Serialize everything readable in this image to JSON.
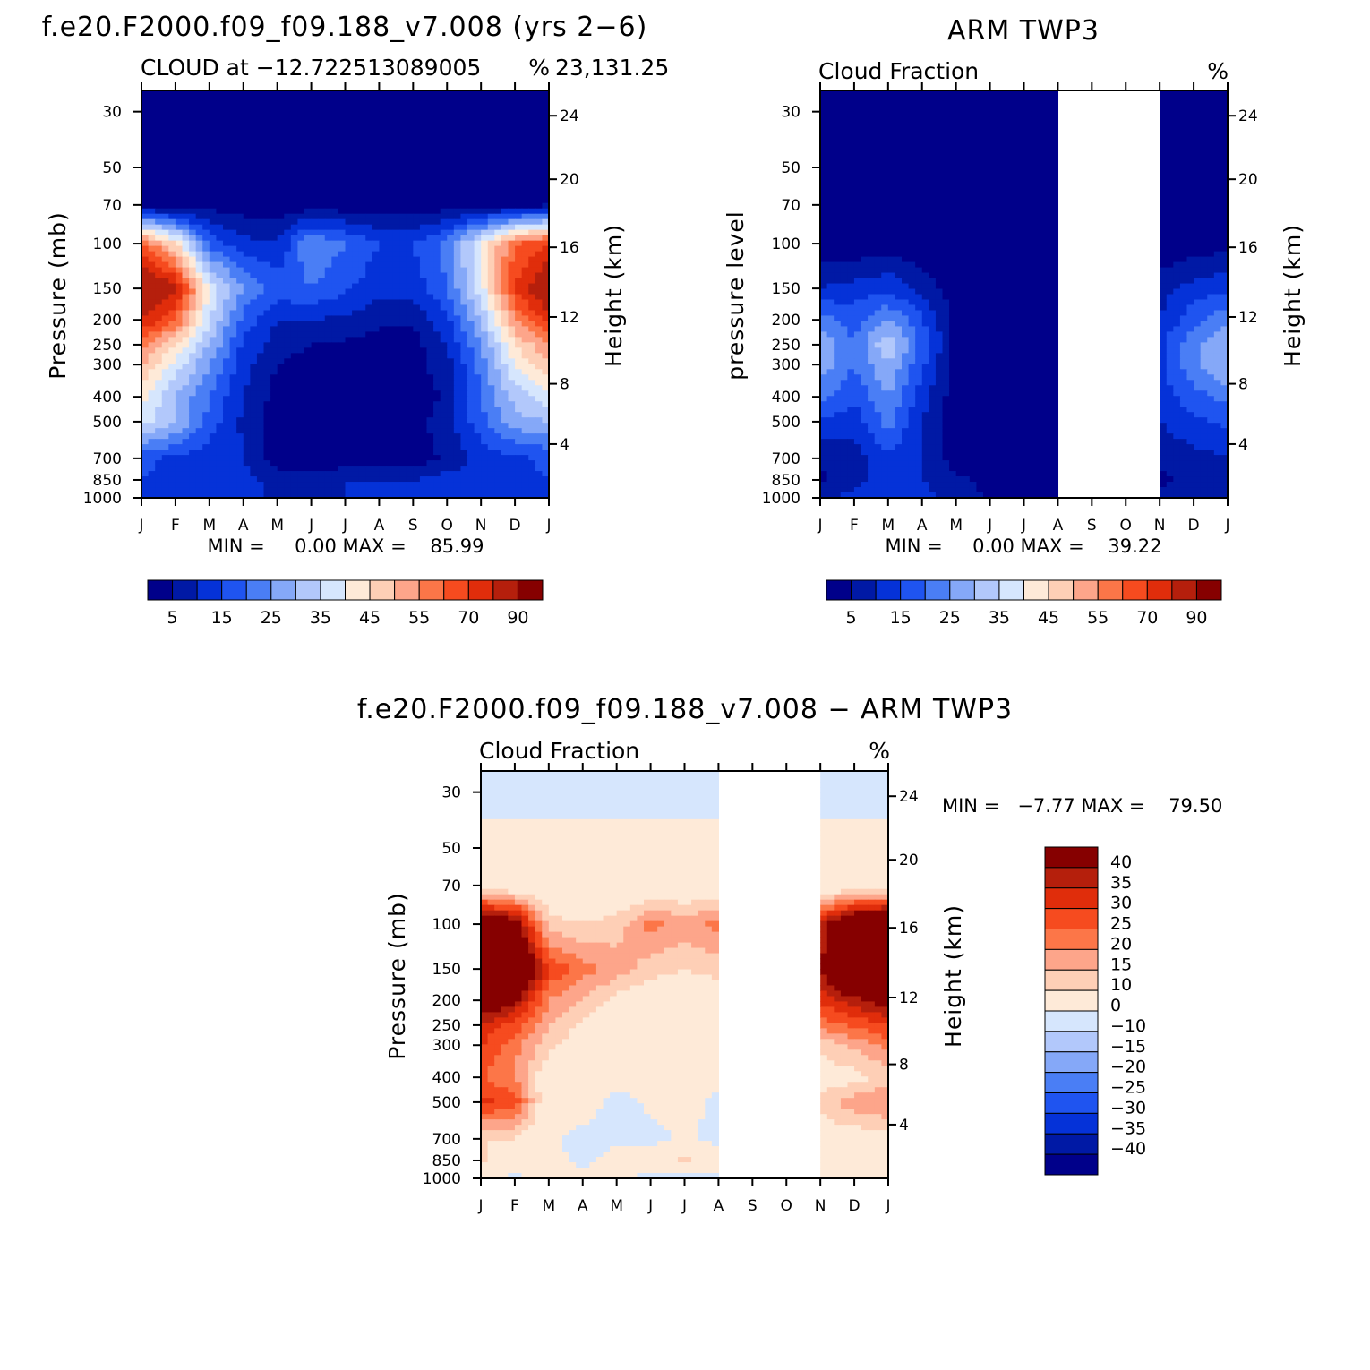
{
  "chart_data": [
    {
      "type": "heatmap",
      "title": "f.e20.F2000.f09_f09.188_v7.008 (yrs 2−6)",
      "subtitle_left": "CLOUD at −12.722513089005",
      "subtitle_right": "23,131.25",
      "units": "%",
      "ylabel": "Pressure (mb)",
      "ylabel_right": "Height (km)",
      "x_ticks": [
        "J",
        "F",
        "M",
        "A",
        "M",
        "J",
        "J",
        "A",
        "S",
        "O",
        "N",
        "D",
        "J"
      ],
      "y_ticks": [
        "30",
        "50",
        "70",
        "100",
        "150",
        "200",
        "250",
        "300",
        "400",
        "500",
        "700",
        "850",
        "1000"
      ],
      "y_ticks_right": [
        "24",
        "20",
        "16",
        "12",
        "8",
        "4"
      ],
      "min_max_text": "MIN =     0.00 MAX =    85.99",
      "min": 0.0,
      "max": 85.99,
      "colorbar_labels": [
        "5",
        "15",
        "25",
        "35",
        "45",
        "55",
        "70",
        "90"
      ],
      "colorbar_colors": [
        "#00008a",
        "#0019a5",
        "#0532d8",
        "#1f54f0",
        "#4a7ef5",
        "#85a8f8",
        "#b2c8fb",
        "#d6e6fd",
        "#feead8",
        "#fecfb6",
        "#fda58a",
        "#fc7648",
        "#f64b1f",
        "#e02d0b",
        "#b51f0c",
        "#860000"
      ],
      "field": {
        "months": [
          "J",
          "F",
          "M",
          "A",
          "M",
          "J",
          "J",
          "A",
          "S",
          "O",
          "N",
          "D",
          "J"
        ],
        "levels_mb": [
          30,
          50,
          70,
          100,
          150,
          200,
          250,
          300,
          400,
          500,
          700,
          850,
          1000
        ],
        "values": [
          [
            1,
            1,
            1,
            1,
            1,
            1,
            1,
            1,
            1,
            1,
            1,
            1,
            1
          ],
          [
            1,
            1,
            1,
            1,
            1,
            1,
            1,
            1,
            1,
            1,
            1,
            1,
            1
          ],
          [
            2,
            1,
            3,
            2,
            2,
            2,
            2,
            2,
            2,
            2,
            2,
            2,
            4
          ],
          [
            60,
            45,
            18,
            12,
            10,
            25,
            20,
            15,
            15,
            22,
            40,
            60,
            65
          ],
          [
            80,
            72,
            40,
            25,
            18,
            20,
            16,
            12,
            12,
            20,
            38,
            65,
            78
          ],
          [
            70,
            60,
            35,
            18,
            10,
            10,
            9,
            6,
            6,
            14,
            30,
            55,
            68
          ],
          [
            58,
            45,
            30,
            14,
            8,
            5,
            4,
            3,
            3,
            10,
            25,
            45,
            55
          ],
          [
            50,
            38,
            25,
            12,
            5,
            2,
            2,
            2,
            3,
            8,
            22,
            40,
            50
          ],
          [
            42,
            30,
            20,
            10,
            3,
            1,
            1,
            1,
            1,
            6,
            20,
            32,
            38
          ],
          [
            38,
            30,
            18,
            9,
            2,
            1,
            1,
            1,
            3,
            8,
            18,
            28,
            30
          ],
          [
            16,
            14,
            12,
            10,
            2,
            1,
            1,
            2,
            2,
            6,
            12,
            14,
            16
          ],
          [
            15,
            14,
            13,
            12,
            8,
            8,
            10,
            10,
            10,
            12,
            12,
            14,
            15
          ],
          [
            10,
            10,
            10,
            10,
            10,
            10,
            10,
            10,
            10,
            10,
            10,
            10,
            10
          ]
        ]
      }
    },
    {
      "type": "heatmap",
      "title": "ARM TWP3",
      "subtitle_left": "Cloud Fraction",
      "units": "%",
      "ylabel": "pressure level",
      "ylabel_right": "Height (km)",
      "x_ticks": [
        "J",
        "F",
        "M",
        "A",
        "M",
        "J",
        "J",
        "A",
        "S",
        "O",
        "N",
        "D",
        "J"
      ],
      "y_ticks": [
        "30",
        "50",
        "70",
        "100",
        "150",
        "200",
        "250",
        "300",
        "400",
        "500",
        "700",
        "850",
        "1000"
      ],
      "y_ticks_right": [
        "24",
        "20",
        "16",
        "12",
        "8",
        "4"
      ],
      "min_max_text": "MIN =     0.00 MAX =    39.22",
      "min": 0.0,
      "max": 39.22,
      "missing_months": [
        "S",
        "O"
      ],
      "colorbar_labels": [
        "5",
        "15",
        "25",
        "35",
        "45",
        "55",
        "70",
        "90"
      ],
      "colorbar_colors": [
        "#00008a",
        "#0019a5",
        "#0532d8",
        "#1f54f0",
        "#4a7ef5",
        "#85a8f8",
        "#b2c8fb",
        "#d6e6fd",
        "#feead8",
        "#fecfb6",
        "#fda58a",
        "#fc7648",
        "#f64b1f",
        "#e02d0b",
        "#b51f0c",
        "#860000"
      ],
      "field": {
        "months": [
          "J",
          "F",
          "M",
          "A",
          "M",
          "J",
          "J",
          "A",
          "S",
          "O",
          "N",
          "D",
          "J"
        ],
        "levels_mb": [
          30,
          50,
          70,
          100,
          150,
          200,
          250,
          300,
          400,
          500,
          700,
          850,
          1000
        ],
        "values": [
          [
            0,
            0,
            0,
            0,
            0,
            0,
            0,
            0,
            null,
            null,
            0,
            0,
            0
          ],
          [
            0,
            0,
            0,
            0,
            0,
            0,
            0,
            0,
            null,
            null,
            0,
            0,
            0
          ],
          [
            0,
            0,
            0,
            0,
            0,
            0,
            0,
            0,
            null,
            null,
            0,
            0,
            0
          ],
          [
            1,
            1,
            2,
            1,
            0,
            0,
            0,
            0,
            null,
            null,
            0,
            2,
            3
          ],
          [
            10,
            12,
            14,
            8,
            2,
            0,
            0,
            0,
            null,
            null,
            8,
            12,
            14
          ],
          [
            22,
            18,
            25,
            16,
            3,
            0,
            0,
            0,
            null,
            null,
            10,
            18,
            24
          ],
          [
            30,
            20,
            35,
            18,
            3,
            0,
            0,
            0,
            null,
            null,
            14,
            24,
            30
          ],
          [
            28,
            20,
            30,
            16,
            3,
            0,
            0,
            0,
            null,
            null,
            14,
            24,
            30
          ],
          [
            22,
            16,
            25,
            12,
            2,
            0,
            0,
            0,
            null,
            null,
            12,
            18,
            22
          ],
          [
            14,
            12,
            22,
            10,
            2,
            0,
            0,
            0,
            null,
            null,
            10,
            14,
            16
          ],
          [
            6,
            8,
            14,
            10,
            2,
            1,
            0,
            0,
            null,
            null,
            6,
            8,
            10
          ],
          [
            4,
            8,
            12,
            10,
            6,
            4,
            0,
            0,
            null,
            null,
            4,
            6,
            8
          ],
          [
            8,
            12,
            14,
            12,
            8,
            4,
            0,
            0,
            null,
            null,
            6,
            8,
            10
          ]
        ]
      }
    },
    {
      "type": "heatmap",
      "title": "f.e20.F2000.f09_f09.188_v7.008 − ARM TWP3",
      "subtitle_left": "Cloud Fraction",
      "units": "%",
      "ylabel": "Pressure (mb)",
      "ylabel_right": "Height (km)",
      "x_ticks": [
        "J",
        "F",
        "M",
        "A",
        "M",
        "J",
        "J",
        "A",
        "S",
        "O",
        "N",
        "D",
        "J"
      ],
      "y_ticks": [
        "30",
        "50",
        "70",
        "100",
        "150",
        "200",
        "250",
        "300",
        "400",
        "500",
        "700",
        "850",
        "1000"
      ],
      "y_ticks_right": [
        "24",
        "20",
        "16",
        "12",
        "8",
        "4"
      ],
      "min_max_text": "MIN =   −7.77 MAX =    79.50",
      "min": -7.77,
      "max": 79.5,
      "missing_months": [
        "S",
        "O"
      ],
      "colorbar_labels": [
        "40",
        "35",
        "30",
        "25",
        "20",
        "15",
        "10",
        "0",
        "−10",
        "−15",
        "−20",
        "−25",
        "−30",
        "−35",
        "−40"
      ],
      "colorbar_colors": [
        "#860000",
        "#b51f0c",
        "#e02d0b",
        "#f64b1f",
        "#fc7648",
        "#fda58a",
        "#fecfb6",
        "#feead8",
        "#d6e6fd",
        "#b2c8fb",
        "#85a8f8",
        "#4a7ef5",
        "#1f54f0",
        "#0532d8",
        "#0019a5",
        "#00008a"
      ],
      "field": {
        "months": [
          "J",
          "F",
          "M",
          "A",
          "M",
          "J",
          "J",
          "A",
          "S",
          "O",
          "N",
          "D",
          "J"
        ],
        "levels_mb": [
          30,
          50,
          70,
          100,
          150,
          200,
          250,
          300,
          400,
          500,
          700,
          850,
          1000
        ],
        "values": [
          [
            -2,
            -2,
            -2,
            -2,
            -2,
            -2,
            -2,
            -2,
            null,
            null,
            -2,
            -2,
            -2
          ],
          [
            2,
            2,
            2,
            2,
            2,
            2,
            2,
            2,
            null,
            null,
            2,
            2,
            2
          ],
          [
            3,
            3,
            3,
            3,
            3,
            3,
            3,
            3,
            null,
            null,
            3,
            3,
            3
          ],
          [
            55,
            45,
            12,
            10,
            12,
            22,
            18,
            22,
            null,
            null,
            35,
            55,
            60
          ],
          [
            70,
            60,
            30,
            22,
            18,
            12,
            10,
            12,
            null,
            null,
            40,
            60,
            62
          ],
          [
            48,
            42,
            20,
            15,
            8,
            5,
            6,
            5,
            null,
            null,
            32,
            38,
            44
          ],
          [
            35,
            28,
            15,
            8,
            4,
            2,
            2,
            2,
            null,
            null,
            22,
            26,
            30
          ],
          [
            30,
            22,
            12,
            6,
            3,
            2,
            2,
            2,
            null,
            null,
            12,
            16,
            22
          ],
          [
            25,
            20,
            4,
            3,
            2,
            2,
            2,
            2,
            null,
            null,
            6,
            8,
            12
          ],
          [
            32,
            28,
            3,
            3,
            -2,
            1,
            3,
            -2,
            null,
            null,
            12,
            18,
            20
          ],
          [
            10,
            10,
            1,
            -2,
            -2,
            -2,
            1,
            -2,
            null,
            null,
            6,
            6,
            8
          ],
          [
            11,
            6,
            3,
            -2,
            3,
            3,
            12,
            4,
            null,
            null,
            5,
            6,
            8
          ],
          [
            2,
            -2,
            2,
            2,
            2,
            -2,
            -2,
            -2,
            null,
            null,
            2,
            2,
            2
          ]
        ]
      }
    }
  ]
}
